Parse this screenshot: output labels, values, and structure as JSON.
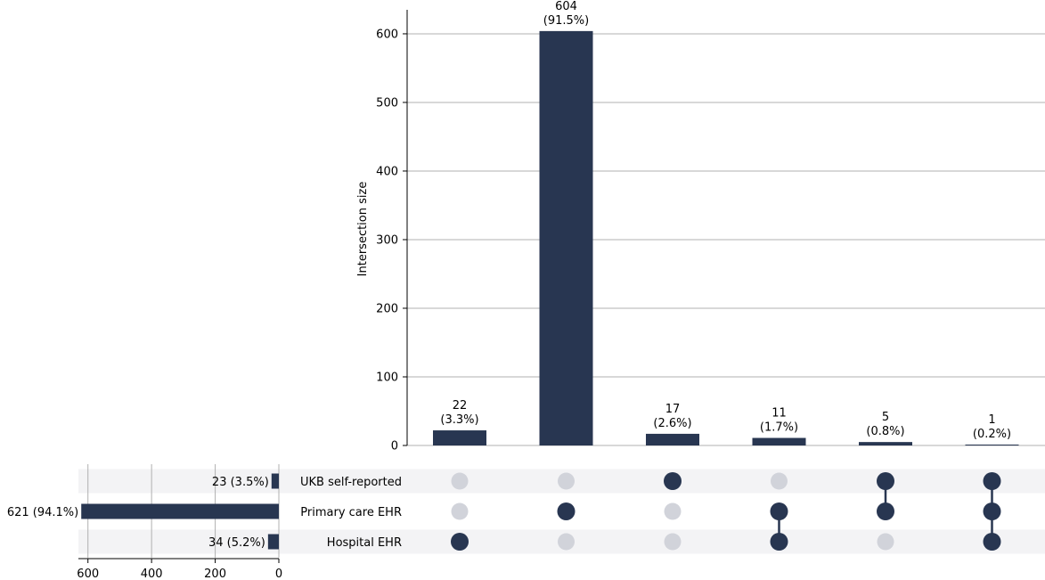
{
  "chart_data": {
    "type": "upset",
    "colors": {
      "bar": "#283651",
      "dot_inactive": "#d1d3da",
      "stripe": "#f3f3f5",
      "grid": "#b0b0b0"
    },
    "intersections": {
      "ylabel": "Intersection size",
      "ylim": [
        0,
        635
      ],
      "yticks": [
        0,
        100,
        200,
        300,
        400,
        500,
        600
      ],
      "ytick_labels": [
        "0",
        "100",
        "200",
        "300",
        "400",
        "500",
        "600"
      ],
      "values": [
        22,
        604,
        17,
        11,
        5,
        1
      ],
      "value_labels": [
        "22",
        "604",
        "17",
        "11",
        "5",
        "1"
      ],
      "percent_labels": [
        "(3.3%)",
        "(91.5%)",
        "(2.6%)",
        "(1.7%)",
        "(0.8%)",
        "(0.2%)"
      ],
      "members": [
        [
          "Hospital EHR"
        ],
        [
          "Primary care EHR"
        ],
        [
          "UKB self-reported"
        ],
        [
          "Primary care EHR",
          "Hospital EHR"
        ],
        [
          "UKB self-reported",
          "Primary care EHR"
        ],
        [
          "UKB self-reported",
          "Primary care EHR",
          "Hospital EHR"
        ]
      ]
    },
    "sets": {
      "names": [
        "UKB self-reported",
        "Primary care EHR",
        "Hospital EHR"
      ],
      "sizes": [
        23,
        621,
        34
      ],
      "size_labels": [
        "23 (3.5%)",
        "621 (94.1%)",
        "34 (5.2%)"
      ],
      "xlim": [
        0,
        630
      ],
      "xticks": [
        600,
        400,
        200,
        0
      ],
      "xtick_labels": [
        "600",
        "400",
        "200",
        "0"
      ]
    }
  }
}
